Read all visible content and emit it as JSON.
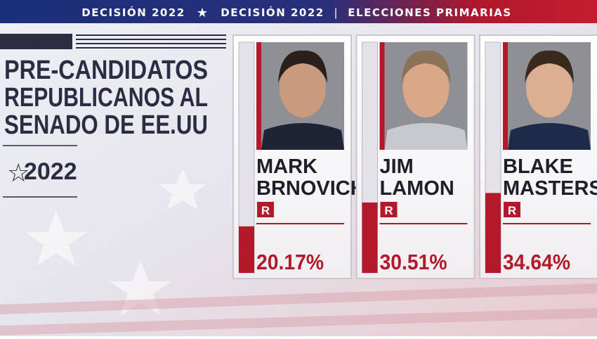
{
  "header": {
    "left": "DECISIÓN 2022",
    "middle": "DECISIÓN 2022",
    "right": "ELECCIONES PRIMARIAS"
  },
  "title_lines": [
    "PRE-CANDIDATOS",
    "REPUBLICANOS AL",
    "SENADO DE EE.UU"
  ],
  "year": "2022",
  "ylim": [
    0,
    100
  ],
  "candidates": [
    {
      "name_lines": [
        "MARK",
        "BRNOVICH"
      ],
      "party": "R",
      "value": 20.17,
      "value_label": "20.17%"
    },
    {
      "name_lines": [
        "JIM",
        "LAMON"
      ],
      "party": "R",
      "value": 30.51,
      "value_label": "30.51%"
    },
    {
      "name_lines": [
        "BLAKE",
        "MASTERS"
      ],
      "party": "R",
      "value": 34.64,
      "value_label": "34.64%"
    }
  ]
}
